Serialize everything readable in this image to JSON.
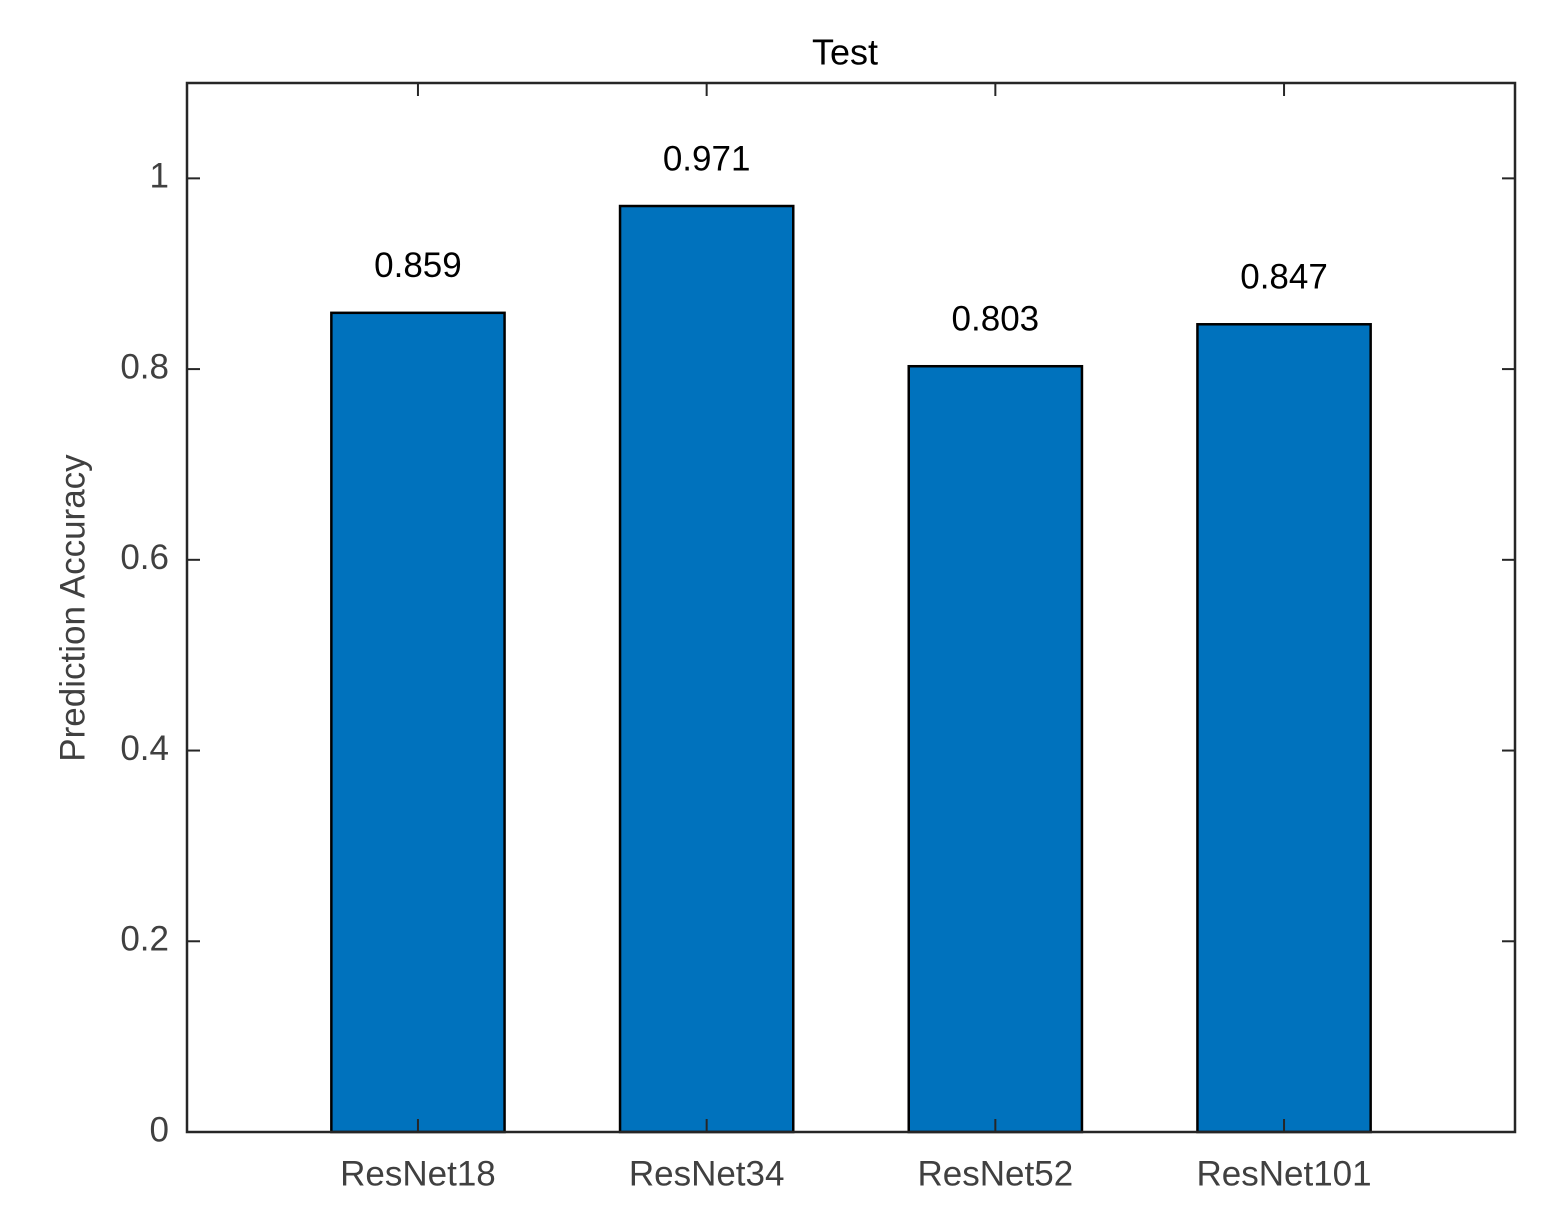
{
  "chart_data": {
    "type": "bar",
    "title": "Test",
    "y_label": "Prediction Accuracy",
    "categories": [
      "ResNet18",
      "ResNet34",
      "ResNet52",
      "ResNet101"
    ],
    "values": [
      0.859,
      0.971,
      0.803,
      0.847
    ],
    "color": "#0072bd",
    "ylim": [
      0,
      1.1
    ],
    "yticks": [
      0,
      0.2,
      0.4,
      0.6,
      0.8,
      1
    ],
    "grid": false
  }
}
